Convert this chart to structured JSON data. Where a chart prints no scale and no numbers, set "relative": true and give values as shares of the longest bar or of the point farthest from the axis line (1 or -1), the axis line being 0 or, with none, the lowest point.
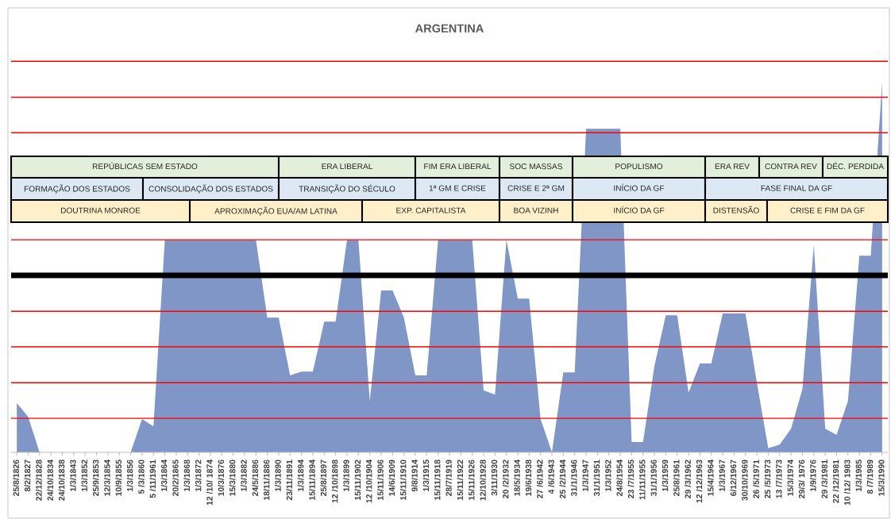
{
  "chart_data": {
    "type": "area",
    "title": "ARGENTINA",
    "relative": true,
    "color": "#7f96c6",
    "grid": false,
    "legend": false,
    "categories": [
      "25/8/1826",
      "8/2/1827",
      "22/12/1828",
      "24/10/1834",
      "24/10/1838",
      "1/3/1843",
      "1/3/1852",
      "25/9/1853",
      "12/3/1854",
      "10/9/1855",
      "1/3/1856",
      "5 /3/1860",
      "5 /11/1961",
      "1/3/1864",
      "20/2/1865",
      "1/3/1868",
      "1/3/1872",
      "12 /10/ 1874",
      "10/3/1876",
      "15/3/1880",
      "1/3/1882",
      "24/5/1886",
      "18/11/1886",
      "1/3/1890",
      "23/11/1891",
      "1/3/1894",
      "15/11/1894",
      "25/8/1897",
      "12 /10/1898",
      "1/3/1899",
      "15/11/1902",
      "12 /10/1904",
      "15/11/1906",
      "14/6/1909",
      "15/11/1910",
      "9/8/1914",
      "1/3/1915",
      "15/11/1918",
      "28/7/1919",
      "15/11/1922",
      "15/11/1926",
      "12/10/1928",
      "3/11/1930",
      "20 /2/1932",
      "18/5/1934",
      "19/6/1938",
      "27 /6/1942",
      "4 /6/1943",
      "25 /2/1944",
      "31/1/1946",
      "1/3/1947",
      "31/1/1951",
      "1/3/1952",
      "24/8/1954",
      "23 /7/1955",
      "11/11/1955",
      "31/1/1956",
      "1/3/1959",
      "25/8/1961",
      "29 /3/1962",
      "12 /12/1963",
      "15/4/1964",
      "1/3/1967",
      "6/12/1967",
      "30/10/1969",
      "26 /5/1971",
      "25 /5/1973",
      "13 /7/1973",
      "15/3/1974",
      "29/3/ 1976",
      "1/9/1976",
      "29 /3/1981",
      "22 /12/1981",
      "10 /12/ 1983",
      "1/3/1985",
      "8 /7/1989",
      "15/3/1990"
    ],
    "values": [
      0.133,
      0.096,
      0,
      0,
      0,
      0,
      0,
      0,
      0,
      0,
      0,
      0.09,
      0.07,
      0.574,
      0.574,
      0.574,
      0.574,
      0.574,
      0.574,
      0.574,
      0.574,
      0.574,
      0.364,
      0.364,
      0.208,
      0.218,
      0.218,
      0.353,
      0.353,
      0.574,
      0.574,
      0.139,
      0.437,
      0.437,
      0.364,
      0.208,
      0.208,
      0.574,
      0.574,
      0.574,
      0.574,
      0.167,
      0.156,
      0.574,
      0.415,
      0.415,
      0.09,
      0,
      0.216,
      0.216,
      0.874,
      0.874,
      0.874,
      0.874,
      0.028,
      0.028,
      0.233,
      0.37,
      0.37,
      0.161,
      0.24,
      0.24,
      0.375,
      0.375,
      0.375,
      0.188,
      0.011,
      0.021,
      0.064,
      0.171,
      0.56,
      0.064,
      0.047,
      0.139,
      0.531,
      0.531,
      1.0
    ],
    "ref_lines": [
      {
        "axis": "y",
        "value": 0.092,
        "color": "#ff0000"
      },
      {
        "axis": "y",
        "value": 0.188,
        "color": "#ff0000"
      },
      {
        "axis": "y",
        "value": 0.285,
        "color": "#ff0000"
      },
      {
        "axis": "y",
        "value": 0.381,
        "color": "#ff0000"
      },
      {
        "axis": "y",
        "value": 0.478,
        "color": "#000000"
      },
      {
        "axis": "y",
        "value": 0.574,
        "color": "#ff0000"
      },
      {
        "axis": "y",
        "value": 0.863,
        "color": "#ff0000"
      },
      {
        "axis": "y",
        "value": 0.959,
        "color": "#ff0000"
      },
      {
        "axis": "y",
        "value": 1.056,
        "color": "#ff0000"
      }
    ],
    "annotations": [
      "REPÚBLICAS SEM ESTADO",
      "ERA LIBERAL",
      "FIM ERA LIBERAL",
      "SOC MASSAS",
      "POPULISMO",
      "ERA REV",
      "CONTRA REV",
      "DÉC. PERDIDA",
      "FORMAÇÃO DOS ESTADOS",
      "CONSOLIDAÇÃO DOS ESTADOS",
      "TRANSIÇÃO DO SÉCULO",
      "1ª GM E CRISE",
      "CRISE E 2ª GM",
      "INÍCIO DA GF",
      "FASE FINAL DA GF",
      "DOUTRINA MONROE",
      "APROXIMAÇÃO EUA/AM LATINA",
      "EXP. CAPITALISTA",
      "BOA VIZINH",
      "INÍCIO DA GF",
      "DISTENSÃO",
      "CRISE E FIM DA GF"
    ]
  }
}
